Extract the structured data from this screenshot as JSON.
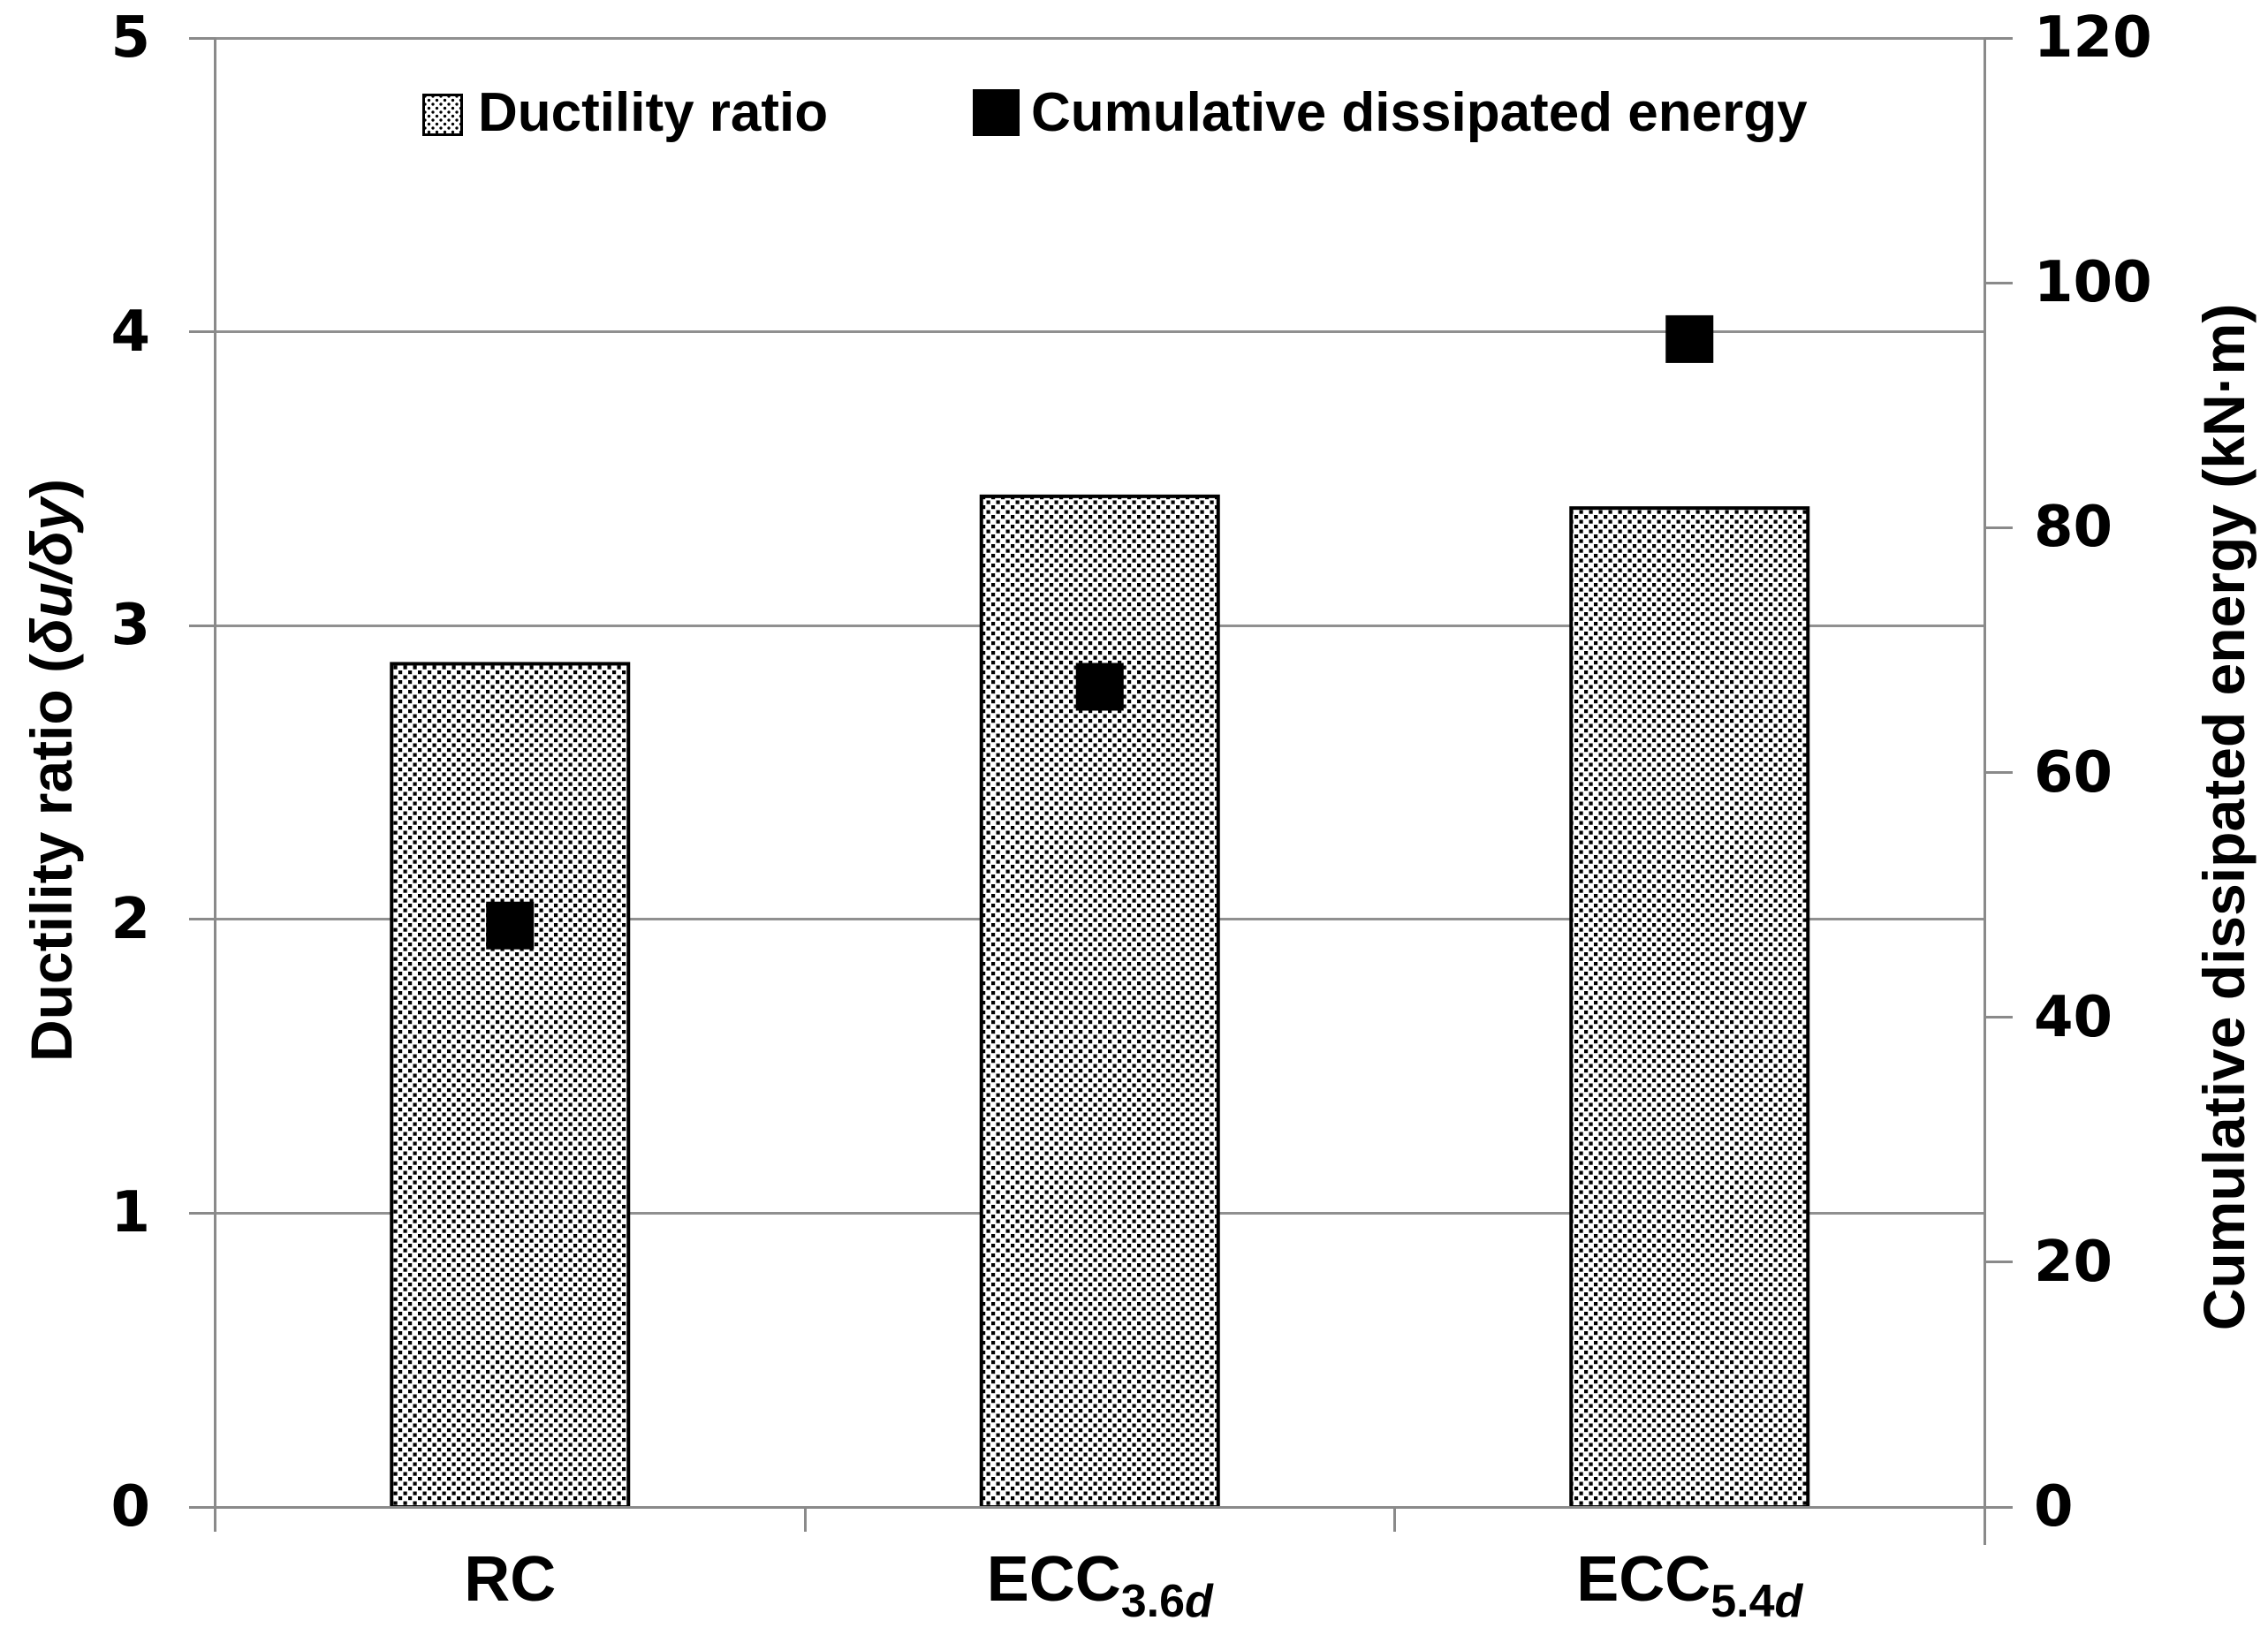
{
  "chart_data": {
    "type": "combo-bar-scatter",
    "categories": [
      "RC",
      "ECC3.6d",
      "ECC5.4d"
    ],
    "categories_render": [
      {
        "base": "RC",
        "sub": "",
        "sub_italic": ""
      },
      {
        "base": "ECC",
        "sub": "3.6",
        "sub_italic": "d"
      },
      {
        "base": "ECC",
        "sub": "5.4",
        "sub_italic": "d"
      }
    ],
    "series": [
      {
        "name": "Ductility ratio",
        "type": "bar",
        "axis": "left",
        "marker": "dotted-pattern-bar",
        "values": [
          2.87,
          3.44,
          3.4
        ]
      },
      {
        "name": "Cumulative dissipated energy",
        "type": "scatter",
        "axis": "right",
        "marker": "filled-square",
        "values": [
          47.5,
          67,
          95.4
        ]
      }
    ],
    "left_axis": {
      "title_prefix": "Ductility ratio (",
      "title_italic": "δu/δy",
      "title_suffix": ")",
      "min": 0,
      "max": 5,
      "ticks": [
        5,
        4,
        3,
        2,
        1,
        0
      ]
    },
    "right_axis": {
      "title": "Cumulative dissipated energy (kN·m)",
      "min": 0,
      "max": 120,
      "ticks": [
        120,
        100,
        80,
        60,
        40,
        20,
        0
      ]
    },
    "legend": {
      "position": "top-inside",
      "items": [
        {
          "label": "Ductility ratio",
          "swatch": "dotted"
        },
        {
          "label": "Cumulative dissipated energy",
          "swatch": "solid"
        }
      ]
    },
    "grid": "horizontal",
    "colors": {
      "bar_fill": "#ffffff",
      "bar_dots": "#000000",
      "bar_border": "#000000",
      "marker": "#000000",
      "gridline": "#909090",
      "axis": "#8a8a8a",
      "text": "#000000",
      "background": "#ffffff"
    }
  }
}
